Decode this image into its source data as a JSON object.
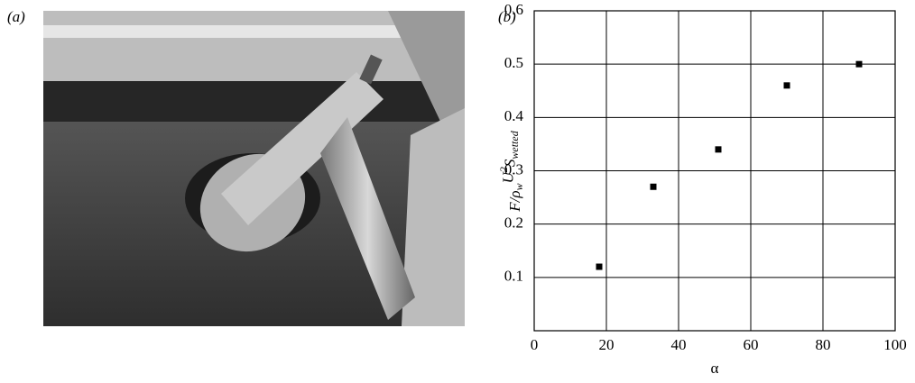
{
  "panel_labels": [
    "(a)",
    "(b)"
  ],
  "chart_data": {
    "type": "scatter",
    "xlabel": "α",
    "ylabel": [
      "F/ρ",
      "w",
      "U",
      "2",
      "S",
      "wetted"
    ],
    "x": [
      18,
      33,
      51,
      70,
      90
    ],
    "values": [
      0.12,
      0.27,
      0.34,
      0.46,
      0.5
    ],
    "color": "#000000",
    "xlim": [
      0,
      100
    ],
    "xticks": [
      0,
      20,
      40,
      60,
      80,
      100
    ],
    "ylim": [
      0,
      0.6
    ],
    "yticks": [
      0.1,
      0.2,
      0.3,
      0.4,
      0.5,
      0.6
    ],
    "grid": true
  }
}
